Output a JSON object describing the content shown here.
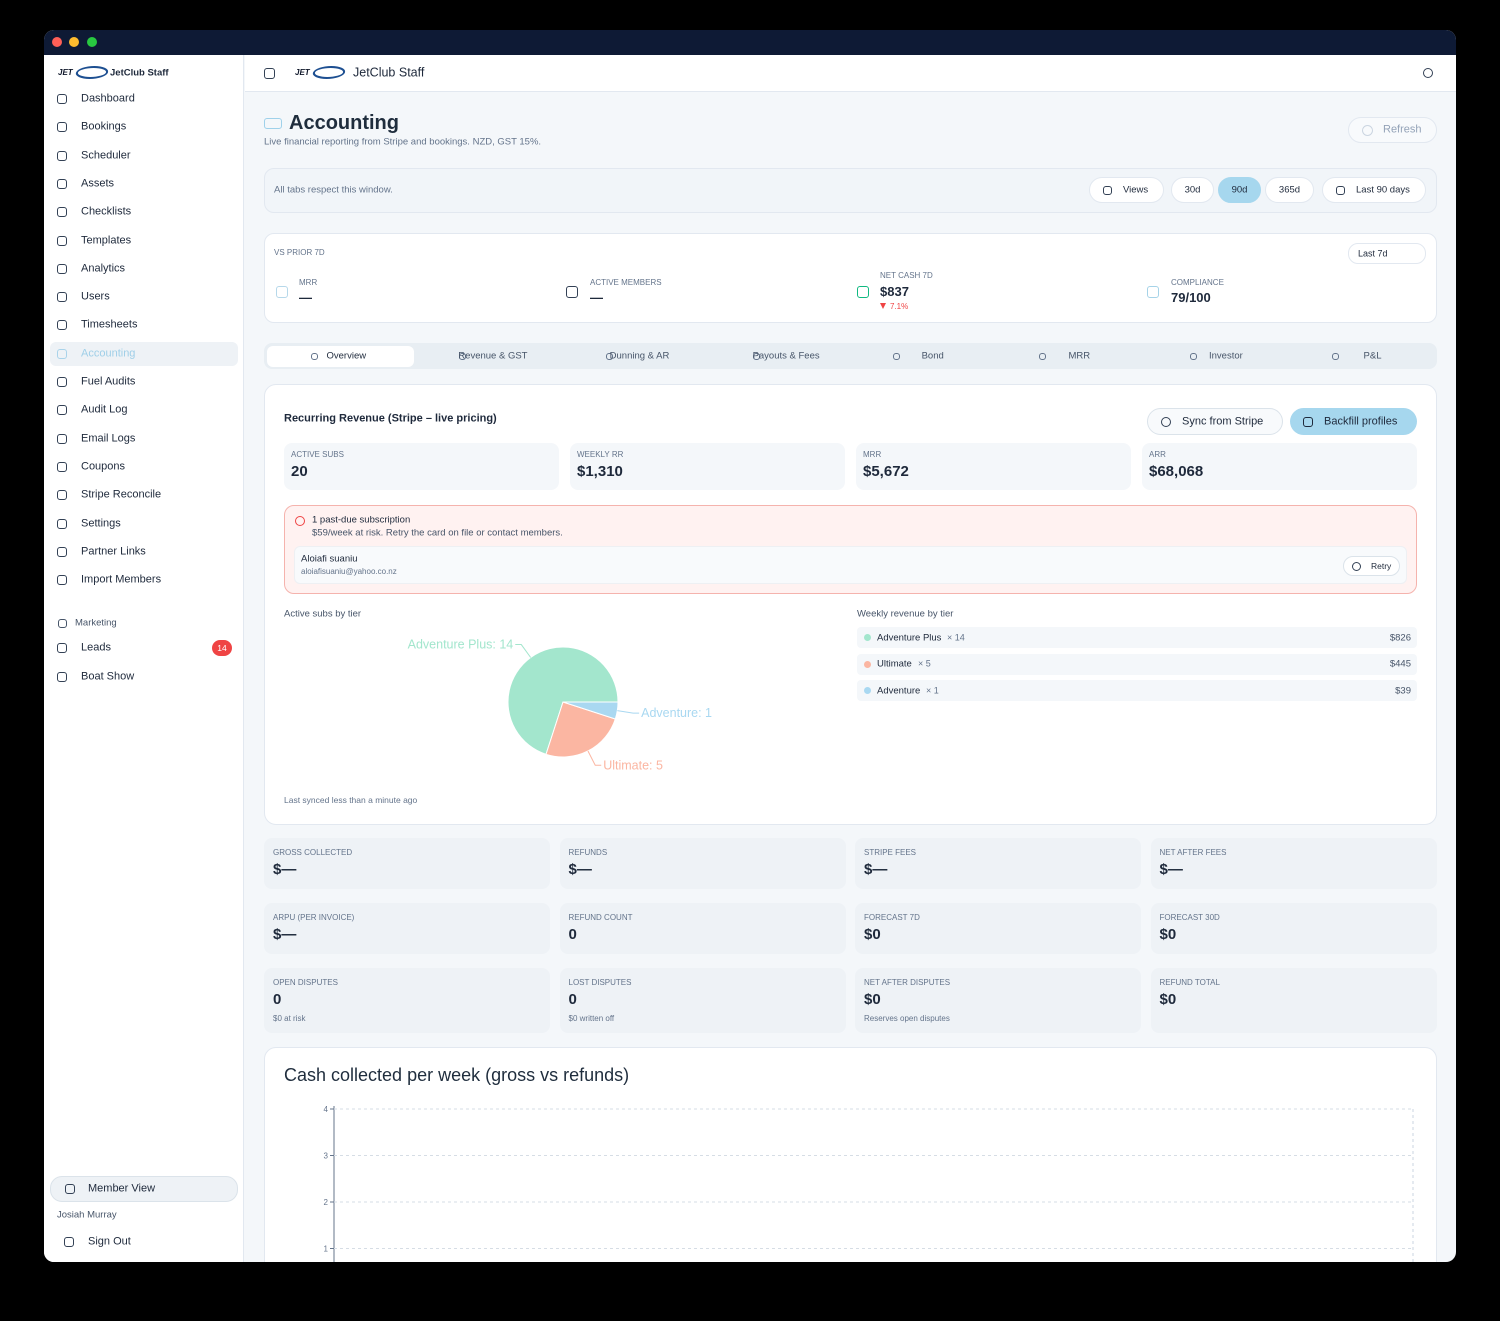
{
  "sidebar": {
    "logo": "JET",
    "brand": "JetClub Staff",
    "nav": [
      "Dashboard",
      "Bookings",
      "Scheduler",
      "Assets",
      "Checklists",
      "Templates",
      "Analytics",
      "Users",
      "Timesheets",
      "Accounting",
      "Fuel Audits",
      "Audit Log",
      "Email Logs",
      "Coupons",
      "Stripe Reconcile",
      "Settings",
      "Partner Links",
      "Import Members"
    ],
    "selected": "Accounting",
    "section": "Marketing",
    "marketing_nav": [
      {
        "label": "Leads",
        "badge": 14
      },
      {
        "label": "Boat Show"
      }
    ],
    "member_view": "Member View",
    "user": "Josiah Murray",
    "sign_out": "Sign Out"
  },
  "topbar": {
    "brand": "JetClub Staff"
  },
  "header": {
    "title": "Accounting",
    "subtitle": "Live financial reporting from Stripe and bookings. NZD, GST 15%.",
    "refresh": "Refresh"
  },
  "window_bar": {
    "note": "All tabs respect this window.",
    "views": "Views",
    "ranges": [
      "30d",
      "90d",
      "365d"
    ],
    "selected": "90d",
    "date_label": "Last 90 days"
  },
  "kpis": {
    "label": "VS PRIOR 7D",
    "period": "Last 7d",
    "items": [
      {
        "label": "MRR",
        "value": "—"
      },
      {
        "label": "ACTIVE MEMBERS",
        "value": "—"
      },
      {
        "label": "NET CASH 7D",
        "value": "$837",
        "delta": "7.1%"
      },
      {
        "label": "COMPLIANCE",
        "value": "79/100"
      }
    ]
  },
  "tabs": [
    "Overview",
    "Revenue & GST",
    "Dunning & AR",
    "Payouts & Fees",
    "Bond",
    "MRR",
    "Investor",
    "P&L"
  ],
  "selected_tab": "Overview",
  "recurring": {
    "title": "Recurring Revenue (Stripe – live pricing)",
    "sync": "Sync from Stripe",
    "backfill": "Backfill profiles",
    "stats": [
      {
        "label": "ACTIVE SUBS",
        "value": "20"
      },
      {
        "label": "WEEKLY RR",
        "value": "$1,310"
      },
      {
        "label": "MRR",
        "value": "$5,672"
      },
      {
        "label": "ARR",
        "value": "$68,068"
      }
    ],
    "alert": {
      "title": "1 past-due subscription",
      "text": "$59/week at risk. Retry the card on file or contact members.",
      "member": {
        "name": "Aloiafi suaniu",
        "email": "aloiafisuaniu@yahoo.co.nz"
      },
      "retry": "Retry"
    },
    "weekly_by_tier": {
      "title": "Weekly revenue by tier",
      "rows": [
        {
          "tier": "Adventure Plus",
          "count": "× 14",
          "amount": "$826",
          "color": "#a3e6cd"
        },
        {
          "tier": "Ultimate",
          "count": "× 5",
          "amount": "$445",
          "color": "#fbb6a2"
        },
        {
          "tier": "Adventure",
          "count": "× 1",
          "amount": "$39",
          "color": "#a9d8f1"
        }
      ]
    },
    "footer": "Last synced less than a minute ago"
  },
  "metrics": [
    [
      {
        "label": "GROSS COLLECTED",
        "value": "$—"
      },
      {
        "label": "REFUNDS",
        "value": "$—"
      },
      {
        "label": "STRIPE FEES",
        "value": "$—"
      },
      {
        "label": "NET AFTER FEES",
        "value": "$—"
      }
    ],
    [
      {
        "label": "ARPU (PER INVOICE)",
        "value": "$—"
      },
      {
        "label": "REFUND COUNT",
        "value": "0"
      },
      {
        "label": "FORECAST 7D",
        "value": "$0"
      },
      {
        "label": "FORECAST 30D",
        "value": "$0"
      }
    ],
    [
      {
        "label": "OPEN DISPUTES",
        "value": "0",
        "note": "$0 at risk"
      },
      {
        "label": "LOST DISPUTES",
        "value": "0",
        "note": "$0 written off"
      },
      {
        "label": "NET AFTER DISPUTES",
        "value": "$0",
        "note": "Reserves open disputes"
      },
      {
        "label": "REFUND TOTAL",
        "value": "$0"
      }
    ]
  ],
  "chart_data": [
    {
      "type": "pie",
      "title": "Active subs by tier",
      "categories": [
        "Adventure Plus",
        "Ultimate",
        "Adventure"
      ],
      "values": [
        14,
        5,
        1
      ],
      "value_labels": [
        "Adventure Plus: 14",
        "Ultimate: 5",
        "Adventure: 1"
      ],
      "colors": [
        "#a3e6cd",
        "#fbb6a2",
        "#a9d8f1"
      ]
    },
    {
      "type": "bar",
      "title": "Cash collected per week (gross vs refunds)",
      "ylim": [
        0,
        4
      ],
      "yticks": [
        1,
        2,
        3,
        4
      ],
      "grid": true
    }
  ]
}
